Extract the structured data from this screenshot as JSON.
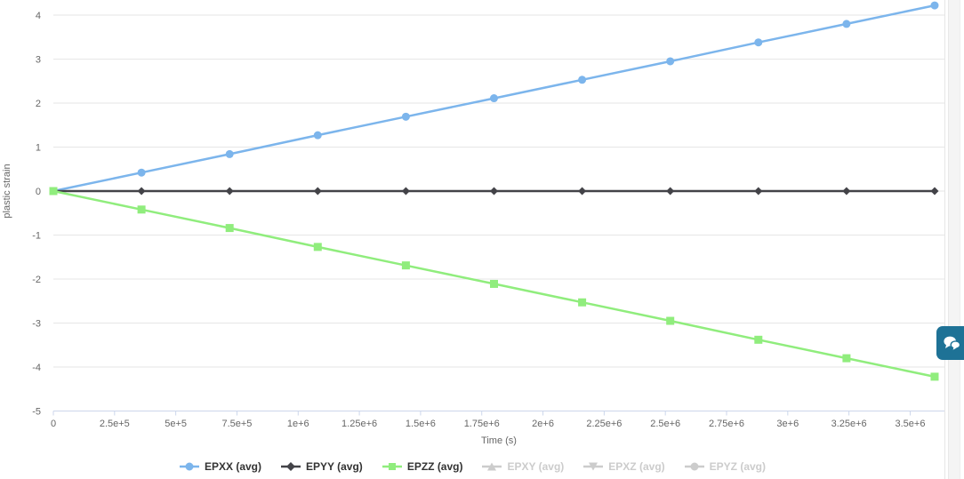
{
  "chart_data": {
    "type": "line",
    "title": "",
    "xlabel": "Time (s)",
    "ylabel": "plastic strain",
    "xlim": [
      0,
      3640000
    ],
    "ylim": [
      -5,
      4.35
    ],
    "grid": "horizontal-only",
    "legend_position": "bottom-center",
    "x": [
      0,
      360000,
      720000,
      1080000,
      1440000,
      1800000,
      2160000,
      2520000,
      2880000,
      3240000,
      3600000
    ],
    "series": [
      {
        "name": "EPXX (avg)",
        "color": "#7cb5ec",
        "marker": "circle",
        "visible": true,
        "values": [
          0,
          0.42,
          0.84,
          1.27,
          1.69,
          2.11,
          2.53,
          2.95,
          3.38,
          3.8,
          4.22
        ]
      },
      {
        "name": "EPYY (avg)",
        "color": "#434348",
        "marker": "diamond",
        "visible": true,
        "values": [
          0,
          0,
          0,
          0,
          0,
          0,
          0,
          0,
          0,
          0,
          0
        ]
      },
      {
        "name": "EPZZ (avg)",
        "color": "#90ed7d",
        "marker": "square",
        "visible": true,
        "values": [
          0,
          -0.42,
          -0.84,
          -1.27,
          -1.69,
          -2.11,
          -2.53,
          -2.95,
          -3.38,
          -3.8,
          -4.22
        ]
      },
      {
        "name": "EPXY (avg)",
        "color": "#cccccc",
        "marker": "triangle",
        "visible": false,
        "values": []
      },
      {
        "name": "EPXZ (avg)",
        "color": "#cccccc",
        "marker": "triangle-down",
        "visible": false,
        "values": []
      },
      {
        "name": "EPYZ (avg)",
        "color": "#cccccc",
        "marker": "circle",
        "visible": false,
        "values": []
      }
    ],
    "x_ticks": {
      "values": [
        0,
        250000,
        500000,
        750000,
        1000000,
        1250000,
        1500000,
        1750000,
        2000000,
        2250000,
        2500000,
        2750000,
        3000000,
        3250000,
        3500000
      ],
      "labels": [
        "0",
        "2.5e+5",
        "5e+5",
        "7.5e+5",
        "1e+6",
        "1.25e+6",
        "1.5e+6",
        "1.75e+6",
        "2e+6",
        "2.25e+6",
        "2.5e+6",
        "2.75e+6",
        "3e+6",
        "3.25e+6",
        "3.5e+6"
      ]
    },
    "y_ticks": {
      "values": [
        4,
        3,
        2,
        1,
        0,
        -1,
        -2,
        -3,
        -4,
        -5
      ],
      "labels": [
        "4",
        "3",
        "2",
        "1",
        "0",
        "-1",
        "-2",
        "-3",
        "-4",
        "-5"
      ]
    }
  },
  "colors": {
    "gridline": "#e6e6e6",
    "axis_line": "#ccd6eb",
    "tick_label": "#666666",
    "axis_title": "#666666",
    "legend_active": "#333333",
    "legend_disabled": "#cccccc",
    "chat_button": "#1e7296",
    "side_strip": "#f4f4f4"
  },
  "chat_button": {
    "icon": "chat-bubble-icon"
  }
}
